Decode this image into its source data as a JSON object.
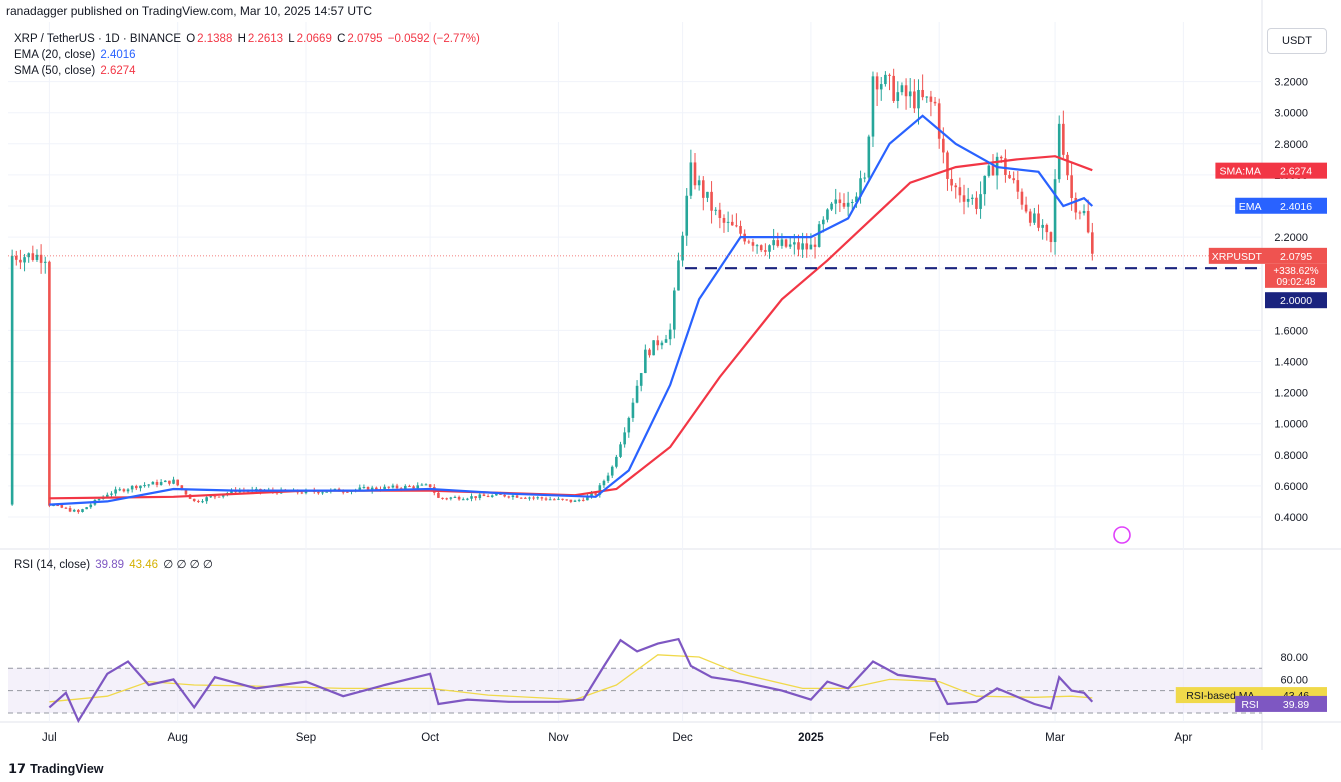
{
  "header": {
    "publisher": "ranadagger published on TradingView.com, Mar 10, 2025 14:57 UTC",
    "currency": "USDT"
  },
  "legend": {
    "symbol": "XRP / TetherUS · 1D · BINANCE",
    "o_label": "O",
    "o": "2.1388",
    "h_label": "H",
    "h": "2.2613",
    "l_label": "L",
    "l": "2.0669",
    "c_label": "C",
    "c": "2.0795",
    "change": "−0.0592 (−2.77%)",
    "ema_label": "EMA (20, close)",
    "ema_value": "2.4016",
    "sma_label": "SMA (50, close)",
    "sma_value": "2.6274",
    "rsi_label": "RSI (14, close)",
    "rsi_value": "39.89",
    "rsi_ma_value": "43.46",
    "rsi_extra": "∅ ∅ ∅ ∅"
  },
  "price_tags": {
    "sma": {
      "name": "SMA:MA",
      "value": "2.6274"
    },
    "ema": {
      "name": "EMA",
      "value": "2.4016"
    },
    "symbol": {
      "name": "XRPUSDT",
      "value": "2.0795",
      "pct": "+338.62%",
      "countdown": "09:02:48"
    },
    "support": {
      "value": "2.0000"
    },
    "rsi_ma": {
      "name": "RSI-based MA",
      "value": "43.46"
    },
    "rsi": {
      "name": "RSI",
      "value": "39.89"
    }
  },
  "footer": {
    "brand": "TradingView"
  },
  "colors": {
    "up": "#26a69a",
    "down": "#ef5350",
    "ema": "#2962ff",
    "sma": "#f23645",
    "rsi": "#7e57c2",
    "rsi_ma": "#f0d94a",
    "support": "#1a237e"
  },
  "chart_data": [
    {
      "type": "line",
      "title": "XRP / TetherUS · 1D · BINANCE",
      "x_labels": [
        "Jul",
        "Aug",
        "Sep",
        "Oct",
        "Nov",
        "Dec",
        "2025",
        "Feb",
        "Mar",
        "Apr"
      ],
      "y_ticks": [
        0.4,
        0.6,
        0.8,
        1.0,
        1.2,
        1.4,
        1.6,
        2.0,
        2.2,
        2.4,
        2.6,
        2.8,
        3.0,
        3.2
      ],
      "ylim": [
        0.22,
        3.42
      ],
      "support_level": 2.0,
      "grid": true,
      "series": [
        {
          "name": "XRPUSDT",
          "points": [
            [
              "2024-07-01",
              0.48
            ],
            [
              "2024-07-08",
              0.43
            ],
            [
              "2024-07-15",
              0.55
            ],
            [
              "2024-07-22",
              0.6
            ],
            [
              "2024-07-31",
              0.63
            ],
            [
              "2024-08-05",
              0.5
            ],
            [
              "2024-08-15",
              0.57
            ],
            [
              "2024-09-01",
              0.56
            ],
            [
              "2024-09-15",
              0.58
            ],
            [
              "2024-10-01",
              0.6
            ],
            [
              "2024-10-03",
              0.52
            ],
            [
              "2024-10-20",
              0.54
            ],
            [
              "2024-11-05",
              0.5
            ],
            [
              "2024-11-10",
              0.55
            ],
            [
              "2024-11-14",
              0.72
            ],
            [
              "2024-11-18",
              1.05
            ],
            [
              "2024-11-22",
              1.45
            ],
            [
              "2024-11-28",
              1.6
            ],
            [
              "2024-12-01",
              2.25
            ],
            [
              "2024-12-03",
              2.62
            ],
            [
              "2024-12-10",
              2.3
            ],
            [
              "2024-12-20",
              2.15
            ],
            [
              "2025-01-01",
              2.13
            ],
            [
              "2025-01-06",
              2.38
            ],
            [
              "2025-01-14",
              2.55
            ],
            [
              "2025-01-16",
              3.25
            ],
            [
              "2025-01-22",
              3.12
            ],
            [
              "2025-01-31",
              3.05
            ],
            [
              "2025-02-03",
              2.55
            ],
            [
              "2025-02-10",
              2.42
            ],
            [
              "2025-02-15",
              2.72
            ],
            [
              "2025-02-24",
              2.3
            ],
            [
              "2025-02-28",
              2.15
            ],
            [
              "2025-03-02",
              2.95
            ],
            [
              "2025-03-05",
              2.45
            ],
            [
              "2025-03-08",
              2.35
            ],
            [
              "2025-03-10",
              2.08
            ]
          ]
        },
        {
          "name": "EMA (20, close)",
          "points": [
            [
              "2024-07-01",
              0.48
            ],
            [
              "2024-07-15",
              0.5
            ],
            [
              "2024-07-31",
              0.58
            ],
            [
              "2024-08-15",
              0.57
            ],
            [
              "2024-09-15",
              0.57
            ],
            [
              "2024-10-01",
              0.58
            ],
            [
              "2024-10-20",
              0.55
            ],
            [
              "2024-11-10",
              0.53
            ],
            [
              "2024-11-18",
              0.7
            ],
            [
              "2024-11-28",
              1.25
            ],
            [
              "2024-12-05",
              1.8
            ],
            [
              "2024-12-15",
              2.2
            ],
            [
              "2025-01-01",
              2.2
            ],
            [
              "2025-01-10",
              2.32
            ],
            [
              "2025-01-20",
              2.8
            ],
            [
              "2025-01-28",
              2.98
            ],
            [
              "2025-02-05",
              2.8
            ],
            [
              "2025-02-15",
              2.65
            ],
            [
              "2025-02-25",
              2.62
            ],
            [
              "2025-03-03",
              2.4
            ],
            [
              "2025-03-08",
              2.45
            ],
            [
              "2025-03-10",
              2.4
            ]
          ]
        },
        {
          "name": "SMA (50, close)",
          "points": [
            [
              "2024-07-01",
              0.52
            ],
            [
              "2024-07-31",
              0.53
            ],
            [
              "2024-09-01",
              0.57
            ],
            [
              "2024-10-01",
              0.57
            ],
            [
              "2024-11-05",
              0.54
            ],
            [
              "2024-11-15",
              0.58
            ],
            [
              "2024-11-28",
              0.85
            ],
            [
              "2024-12-10",
              1.3
            ],
            [
              "2024-12-25",
              1.8
            ],
            [
              "2025-01-05",
              2.05
            ],
            [
              "2025-01-15",
              2.3
            ],
            [
              "2025-01-25",
              2.55
            ],
            [
              "2025-02-05",
              2.65
            ],
            [
              "2025-02-20",
              2.7
            ],
            [
              "2025-03-01",
              2.72
            ],
            [
              "2025-03-10",
              2.63
            ]
          ]
        }
      ]
    },
    {
      "type": "line",
      "title": "RSI (14, close)",
      "y_ticks": [
        60,
        80
      ],
      "ylim": [
        10,
        105
      ],
      "bands": [
        30,
        50,
        70
      ],
      "series": [
        {
          "name": "RSI",
          "points": [
            [
              "2024-07-01",
              35
            ],
            [
              "2024-07-05",
              48
            ],
            [
              "2024-07-08",
              23
            ],
            [
              "2024-07-15",
              65
            ],
            [
              "2024-07-20",
              76
            ],
            [
              "2024-07-25",
              55
            ],
            [
              "2024-07-31",
              60
            ],
            [
              "2024-08-05",
              35
            ],
            [
              "2024-08-10",
              62
            ],
            [
              "2024-08-20",
              52
            ],
            [
              "2024-09-01",
              58
            ],
            [
              "2024-09-10",
              45
            ],
            [
              "2024-09-20",
              55
            ],
            [
              "2024-10-01",
              65
            ],
            [
              "2024-10-03",
              38
            ],
            [
              "2024-10-10",
              42
            ],
            [
              "2024-10-20",
              40
            ],
            [
              "2024-11-01",
              40
            ],
            [
              "2024-11-07",
              42
            ],
            [
              "2024-11-12",
              72
            ],
            [
              "2024-11-16",
              95
            ],
            [
              "2024-11-20",
              85
            ],
            [
              "2024-11-25",
              92
            ],
            [
              "2024-11-30",
              96
            ],
            [
              "2024-12-03",
              72
            ],
            [
              "2024-12-08",
              62
            ],
            [
              "2024-12-15",
              58
            ],
            [
              "2024-12-25",
              50
            ],
            [
              "2025-01-01",
              42
            ],
            [
              "2025-01-05",
              58
            ],
            [
              "2025-01-10",
              52
            ],
            [
              "2025-01-16",
              76
            ],
            [
              "2025-01-22",
              64
            ],
            [
              "2025-01-31",
              60
            ],
            [
              "2025-02-03",
              38
            ],
            [
              "2025-02-10",
              40
            ],
            [
              "2025-02-15",
              52
            ],
            [
              "2025-02-24",
              38
            ],
            [
              "2025-02-28",
              34
            ],
            [
              "2025-03-02",
              62
            ],
            [
              "2025-03-05",
              50
            ],
            [
              "2025-03-08",
              48
            ],
            [
              "2025-03-10",
              40
            ]
          ]
        },
        {
          "name": "RSI-based MA",
          "points": [
            [
              "2024-07-01",
              40
            ],
            [
              "2024-07-15",
              45
            ],
            [
              "2024-07-25",
              58
            ],
            [
              "2024-08-05",
              55
            ],
            [
              "2024-08-20",
              54
            ],
            [
              "2024-09-10",
              52
            ],
            [
              "2024-10-01",
              52
            ],
            [
              "2024-10-15",
              46
            ],
            [
              "2024-11-05",
              42
            ],
            [
              "2024-11-15",
              55
            ],
            [
              "2024-11-25",
              82
            ],
            [
              "2024-12-05",
              80
            ],
            [
              "2024-12-15",
              65
            ],
            [
              "2024-12-30",
              52
            ],
            [
              "2025-01-10",
              52
            ],
            [
              "2025-01-20",
              60
            ],
            [
              "2025-02-01",
              58
            ],
            [
              "2025-02-10",
              45
            ],
            [
              "2025-02-24",
              44
            ],
            [
              "2025-03-05",
              45
            ],
            [
              "2025-03-10",
              43.46
            ]
          ]
        }
      ]
    }
  ]
}
